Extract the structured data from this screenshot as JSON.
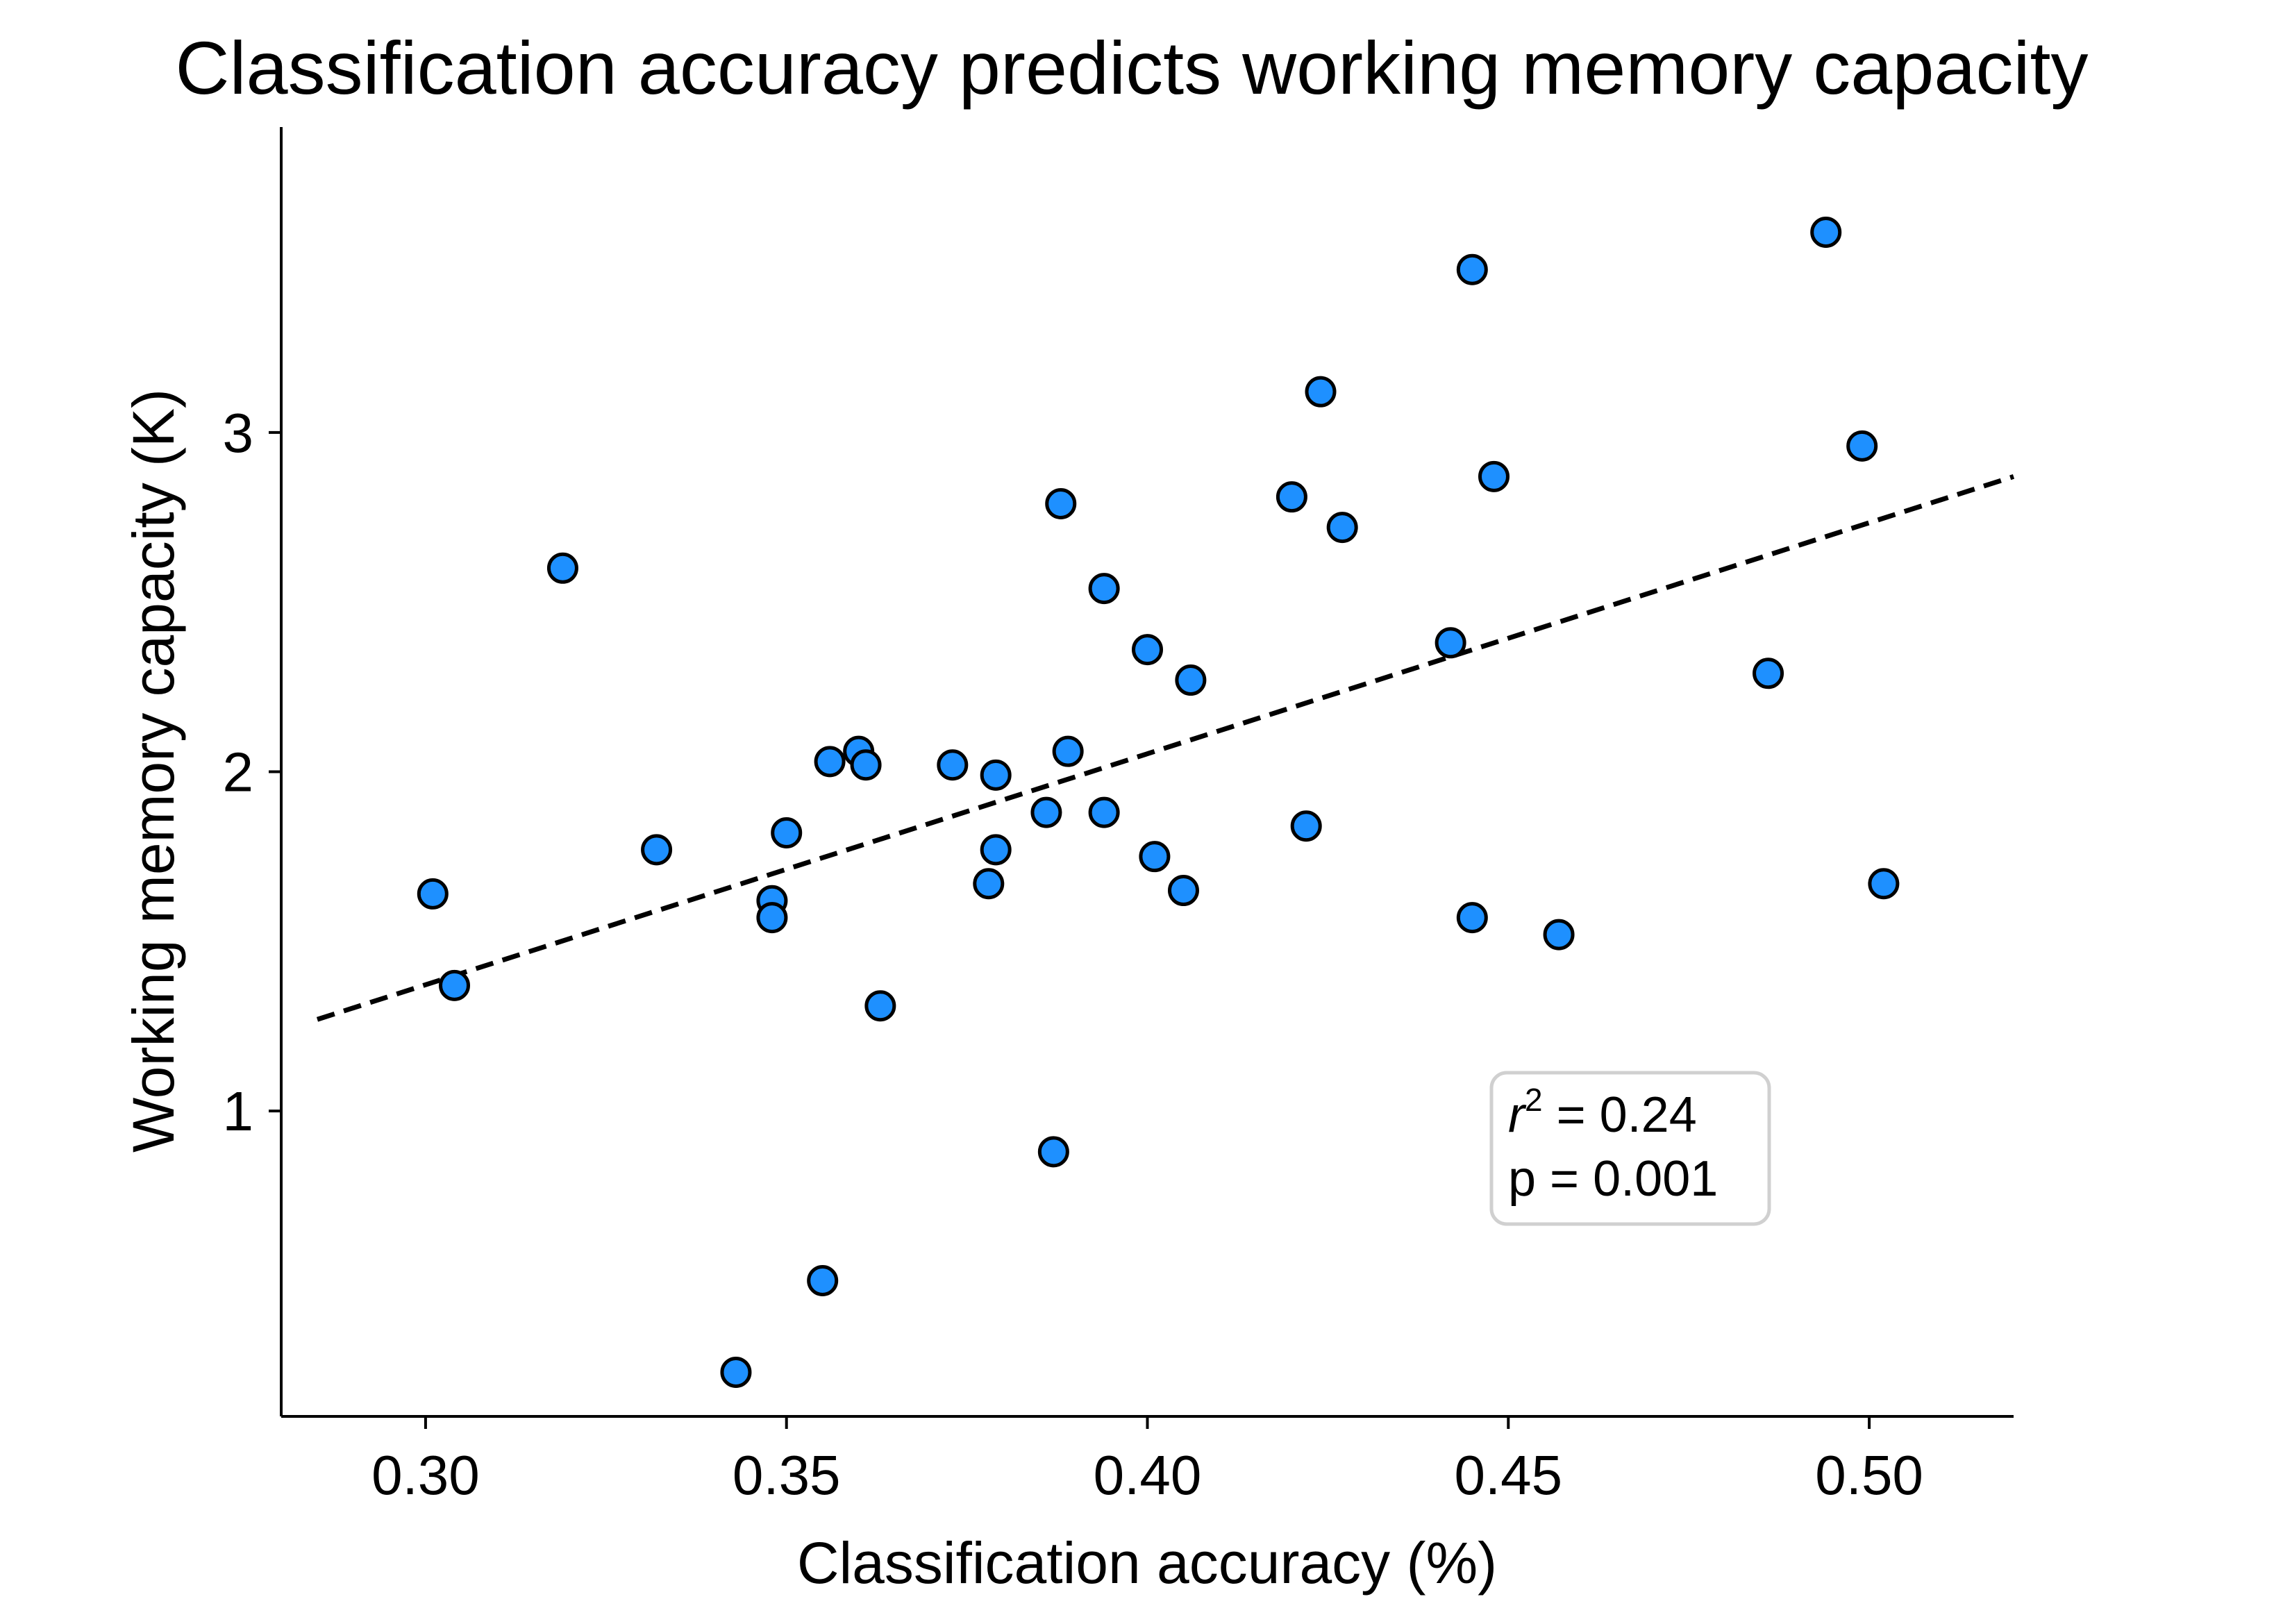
{
  "chart_data": {
    "type": "scatter",
    "title": "Classification accuracy predicts working memory capacity",
    "xlabel": "Classification accuracy (%)",
    "ylabel": "Working memory capacity (K)",
    "xlim": [
      0.28,
      0.52
    ],
    "ylim": [
      0.1,
      3.9
    ],
    "x_ticks": [
      0.3,
      0.35,
      0.4,
      0.45,
      0.5
    ],
    "x_tick_labels": [
      "0.30",
      "0.35",
      "0.40",
      "0.45",
      "0.50"
    ],
    "y_ticks": [
      1,
      2,
      3
    ],
    "y_tick_labels": [
      "1",
      "2",
      "3"
    ],
    "grid": false,
    "point_color": "#1e90ff",
    "point_edge_color": "#000000",
    "points": [
      {
        "x": 0.301,
        "y": 1.64
      },
      {
        "x": 0.304,
        "y": 1.37
      },
      {
        "x": 0.319,
        "y": 2.6
      },
      {
        "x": 0.332,
        "y": 1.77
      },
      {
        "x": 0.343,
        "y": 0.23
      },
      {
        "x": 0.348,
        "y": 1.62
      },
      {
        "x": 0.348,
        "y": 1.57
      },
      {
        "x": 0.35,
        "y": 1.82
      },
      {
        "x": 0.355,
        "y": 0.5
      },
      {
        "x": 0.356,
        "y": 2.03
      },
      {
        "x": 0.36,
        "y": 2.06
      },
      {
        "x": 0.361,
        "y": 2.02
      },
      {
        "x": 0.363,
        "y": 1.31
      },
      {
        "x": 0.373,
        "y": 2.02
      },
      {
        "x": 0.378,
        "y": 1.67
      },
      {
        "x": 0.379,
        "y": 1.99
      },
      {
        "x": 0.379,
        "y": 1.77
      },
      {
        "x": 0.386,
        "y": 1.88
      },
      {
        "x": 0.387,
        "y": 0.88
      },
      {
        "x": 0.388,
        "y": 2.79
      },
      {
        "x": 0.389,
        "y": 2.06
      },
      {
        "x": 0.394,
        "y": 1.88
      },
      {
        "x": 0.394,
        "y": 2.54
      },
      {
        "x": 0.4,
        "y": 2.36
      },
      {
        "x": 0.401,
        "y": 1.75
      },
      {
        "x": 0.405,
        "y": 1.65
      },
      {
        "x": 0.406,
        "y": 2.27
      },
      {
        "x": 0.42,
        "y": 2.81
      },
      {
        "x": 0.422,
        "y": 1.84
      },
      {
        "x": 0.424,
        "y": 3.12
      },
      {
        "x": 0.427,
        "y": 2.72
      },
      {
        "x": 0.442,
        "y": 2.38
      },
      {
        "x": 0.445,
        "y": 3.48
      },
      {
        "x": 0.445,
        "y": 1.57
      },
      {
        "x": 0.448,
        "y": 2.87
      },
      {
        "x": 0.457,
        "y": 1.52
      },
      {
        "x": 0.486,
        "y": 2.29
      },
      {
        "x": 0.494,
        "y": 3.59
      },
      {
        "x": 0.499,
        "y": 2.96
      },
      {
        "x": 0.502,
        "y": 1.67
      }
    ],
    "regression_line": {
      "x": [
        0.285,
        0.52
      ],
      "y": [
        1.27,
        2.87
      ],
      "style": "dashed",
      "color": "#000000"
    },
    "annotation": {
      "r2_symbol": "r",
      "r2_exponent": "2",
      "r2_text": " = 0.24",
      "p_text": "p = 0.001"
    }
  }
}
